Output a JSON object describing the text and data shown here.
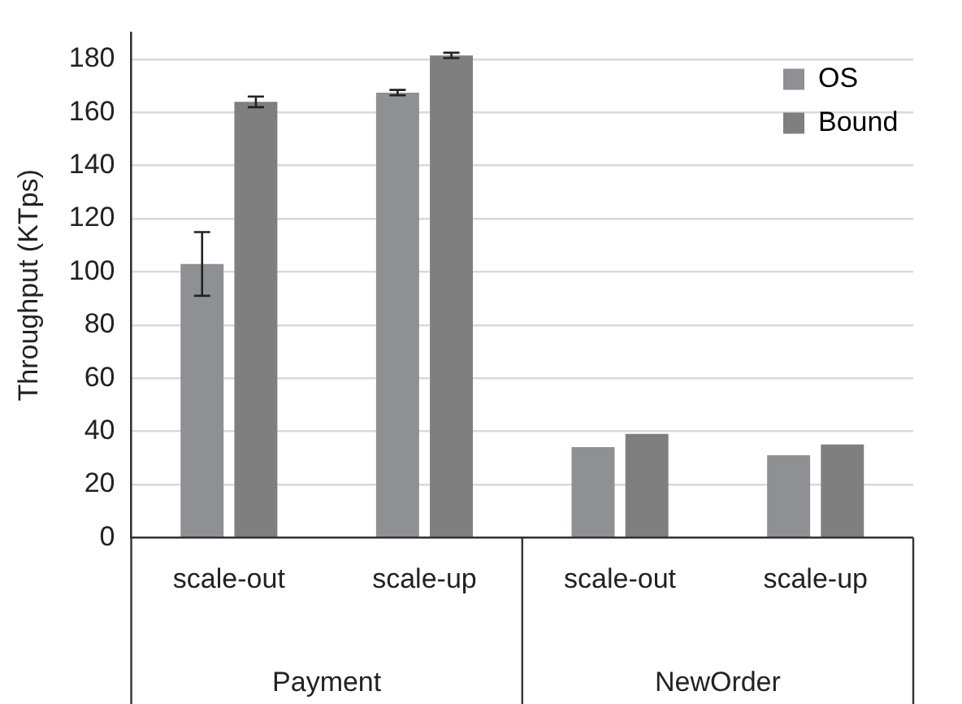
{
  "chart_data": {
    "type": "bar",
    "ylabel": "Throughput (KTps)",
    "categories": [
      "scale-out",
      "scale-up",
      "scale-out",
      "scale-up"
    ],
    "series": [
      {
        "name": "OS",
        "color": "#8f9094",
        "values": [
          103,
          167.5,
          34,
          31
        ],
        "errors": [
          12,
          1,
          null,
          null
        ]
      },
      {
        "name": "Bound",
        "color": "#7f7f7f",
        "values": [
          164,
          181.5,
          39,
          35
        ],
        "errors": [
          2,
          1,
          null,
          null
        ]
      }
    ],
    "ylim": [
      0,
      190
    ],
    "yticks": [
      0,
      20,
      40,
      60,
      80,
      100,
      120,
      140,
      160,
      180
    ],
    "grid": "y",
    "legend": "top right",
    "annotations": [
      "Payment",
      "NewOrder"
    ]
  }
}
